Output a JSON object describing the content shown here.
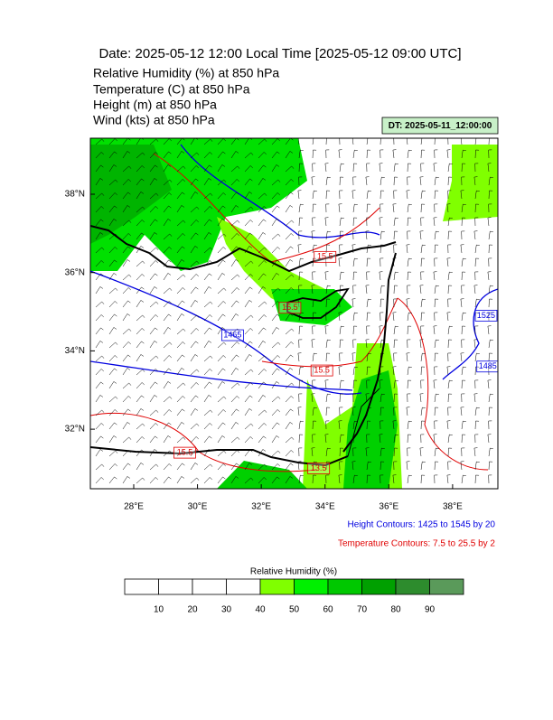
{
  "header": {
    "title": "Date: 2025-05-12  12:00 Local Time [2025-05-12  09:00 UTC]",
    "lines": [
      "Relative Humidity   (%)     at   850 hPa",
      "Temperature   (C)     at   850 hPa",
      "Height   (m)     at   850 hPa",
      "Wind   (kts)     at   850 hPa"
    ],
    "valid_time": "DT: 2025-05-11_12:00:00"
  },
  "map": {
    "lonlim": [
      26.64,
      39.42
    ],
    "latlim": [
      30.48,
      39.43
    ],
    "lat_ticks": [
      {
        "value": 32,
        "label": "32°N"
      },
      {
        "value": 34,
        "label": "34°N"
      },
      {
        "value": 36,
        "label": "36°N"
      },
      {
        "value": 38,
        "label": "38°N"
      }
    ],
    "lon_ticks": [
      {
        "value": 28,
        "label": "28°E"
      },
      {
        "value": 30,
        "label": "30°E"
      },
      {
        "value": 32,
        "label": "32°E"
      },
      {
        "value": 34,
        "label": "34°E"
      },
      {
        "value": 36,
        "label": "36°E"
      },
      {
        "value": 38,
        "label": "38°E"
      }
    ],
    "height_labels": [
      {
        "text": "1465",
        "lon": 31.1,
        "lat": 34.4
      },
      {
        "text": "1485",
        "lon": 39.1,
        "lat": 33.6
      },
      {
        "text": "1525",
        "lon": 39.05,
        "lat": 34.9
      }
    ],
    "temperature_labels": [
      {
        "text": "15.5",
        "lon": 33.9,
        "lat": 33.5
      },
      {
        "text": "15.5",
        "lon": 29.6,
        "lat": 31.4
      },
      {
        "text": "13.5",
        "lon": 33.8,
        "lat": 31.0
      },
      {
        "text": "15.5",
        "lon": 34.0,
        "lat": 36.4
      },
      {
        "text": "15.5",
        "lon": 32.9,
        "lat": 35.1
      }
    ],
    "height_note": "Height Contours: 1425 to 1545 by 20",
    "temperature_note": "Temperature Contours: 7.5 to 25.5 by 2"
  },
  "colorbar": {
    "title": "Relative Humidity  (%)",
    "range": [
      0,
      100
    ],
    "ticks": [
      10,
      20,
      30,
      40,
      50,
      60,
      70,
      80,
      90
    ],
    "colors": [
      "#ffffff",
      "#ffffff",
      "#ffffff",
      "#ffffff",
      "#80ff00",
      "#00f000",
      "#00c800",
      "#00a000",
      "#2d8c2d",
      "#5a9a5a"
    ]
  }
}
